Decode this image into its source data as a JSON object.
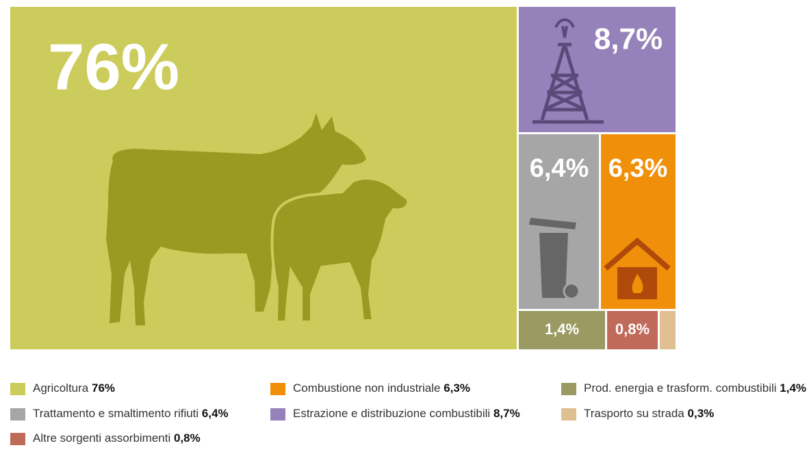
{
  "chart_data": {
    "type": "treemap",
    "categories": [
      "Agricoltura",
      "Trattamento e smaltimento rifiuti",
      "Altre sorgenti assorbimenti",
      "Combustione non industriale",
      "Estrazione e distribuzione combustibili",
      "Prod. energia e trasform. combustibili",
      "Trasporto su strada"
    ],
    "values": [
      76,
      6.4,
      0.8,
      6.3,
      8.7,
      1.4,
      0.3
    ],
    "value_labels": [
      "76%",
      "6,4%",
      "0,8%",
      "6,3%",
      "8,7%",
      "1,4%",
      "0,3%"
    ],
    "colors": [
      "#cccc5c",
      "#a6a6a6",
      "#c06a5a",
      "#f0900a",
      "#9682bb",
      "#9a9a62",
      "#e0c090"
    ]
  }
}
